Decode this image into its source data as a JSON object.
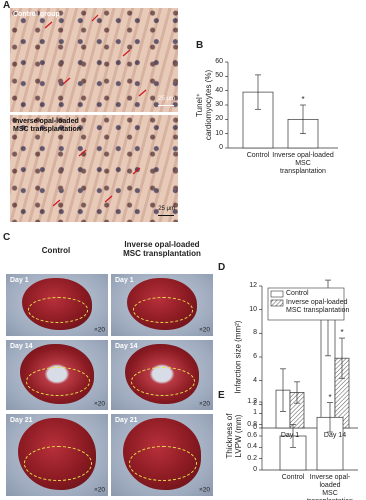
{
  "panels": {
    "A": {
      "label": "A",
      "images": [
        {
          "caption": "Control group",
          "scale_bar": "25 μm"
        },
        {
          "caption": "Inverse opal-loaded\nMSC transplantation",
          "scale_bar": "25 μm"
        }
      ]
    },
    "C": {
      "label": "C",
      "columns": [
        "Control",
        "Inverse opal-loaded\nMSC transplantation"
      ],
      "rows": [
        "Day 1",
        "Day 14",
        "Day 21"
      ],
      "magnification": "×20"
    }
  },
  "chart_data": [
    {
      "panel": "B",
      "type": "bar",
      "ylabel": "Tunel⁺\ncardiomyocytes (%)",
      "categories": [
        "Control",
        "Inverse opal-loaded\nMSC transplantation"
      ],
      "values": [
        39,
        20
      ],
      "errors": [
        12,
        10
      ],
      "markers": [
        null,
        "*"
      ],
      "color": "#ffffff",
      "ylim": [
        0,
        60
      ],
      "yticks": [
        0,
        10,
        20,
        30,
        40,
        50,
        60
      ]
    },
    {
      "panel": "D",
      "type": "grouped-bar",
      "ylabel": "Infarction size (mm²)",
      "categories": [
        "Day 1",
        "Day 14"
      ],
      "series": [
        {
          "name": "Control",
          "color": "#ffffff",
          "values": [
            3.2,
            9.3
          ],
          "errors": [
            1.8,
            3.2
          ]
        },
        {
          "name": "Inverse opal-loaded\nMSC transplantation",
          "color": "#ffffff",
          "hatch": true,
          "values": [
            3,
            5.9
          ],
          "errors": [
            0.9,
            1.7
          ],
          "markers": [
            null,
            "*"
          ]
        }
      ],
      "legend": "upper left",
      "ylim": [
        0,
        12
      ],
      "yticks": [
        0,
        2,
        4,
        6,
        8,
        10,
        12
      ]
    },
    {
      "panel": "E",
      "type": "bar",
      "ylabel": "Thickness of\nLVPW (mm)",
      "categories": [
        "Control",
        "Inverse opal-loaded\nMSC transplantation"
      ],
      "values": [
        0.6,
        0.93
      ],
      "errors": [
        0.2,
        0.26
      ],
      "markers": [
        null,
        "*"
      ],
      "color": "#ffffff",
      "ylim": [
        0,
        1.2
      ],
      "yticks": [
        0,
        0.2,
        0.4,
        0.6,
        0.8,
        1,
        1.2
      ]
    }
  ]
}
